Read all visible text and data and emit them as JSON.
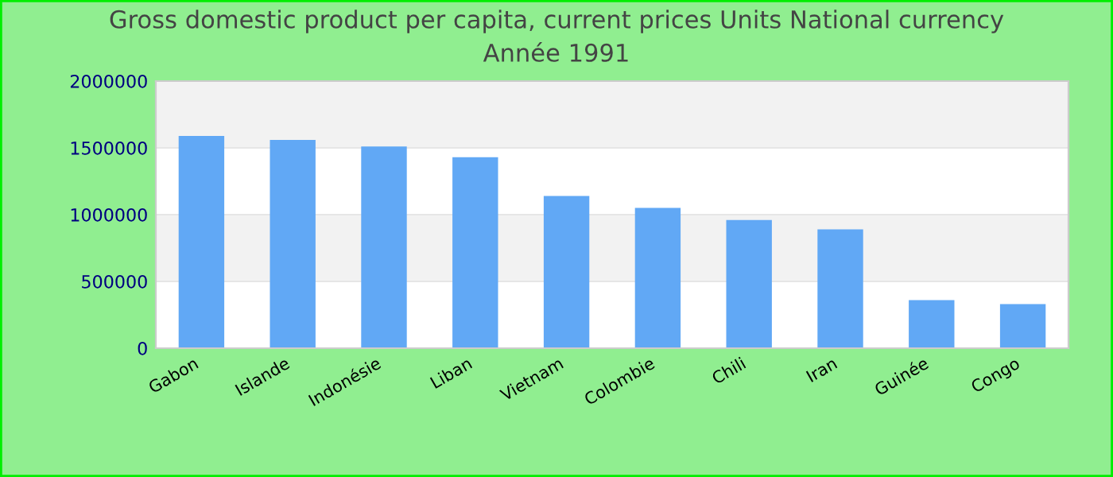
{
  "chart_data": {
    "type": "bar",
    "title": "Gross domestic product per capita, current prices Units National currency",
    "subtitle": "Année 1991",
    "categories": [
      "Gabon",
      "Islande",
      "Indonésie",
      "Liban",
      "Vietnam",
      "Colombie",
      "Chili",
      "Iran",
      "Guinée",
      "Congo"
    ],
    "values": [
      1590000,
      1560000,
      1510000,
      1430000,
      1140000,
      1050000,
      960000,
      890000,
      360000,
      330000
    ],
    "color": "#61a8f5",
    "ylim": [
      0,
      2000000
    ],
    "yticks": [
      0,
      500000,
      1000000,
      1500000,
      2000000
    ],
    "grid": "y"
  }
}
